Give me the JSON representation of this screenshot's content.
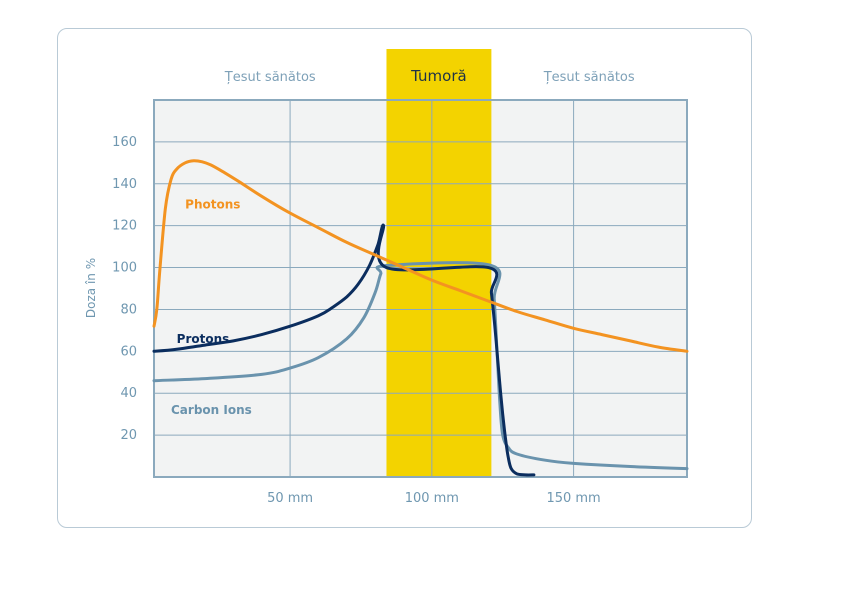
{
  "chart_data": {
    "type": "line",
    "ylabel": "Doza în %",
    "xlim": [
      2,
      190
    ],
    "ylim": [
      0,
      180
    ],
    "x_ticks": [
      {
        "value": 50,
        "label": "50 mm"
      },
      {
        "value": 100,
        "label": "100 mm"
      },
      {
        "value": 150,
        "label": "150 mm"
      }
    ],
    "y_ticks": [
      20,
      40,
      60,
      80,
      100,
      120,
      140,
      160
    ],
    "grid": true,
    "regions": [
      {
        "label": "Țesut sănătos",
        "from": 2,
        "to": 84,
        "highlight": false
      },
      {
        "label": "Tumoră",
        "from": 84,
        "to": 121,
        "highlight": true
      },
      {
        "label": "Țesut sănătos",
        "from": 121,
        "to": 190,
        "highlight": false
      }
    ],
    "series": [
      {
        "name": "Photons",
        "color": "#f39321",
        "x": [
          2,
          3,
          4,
          6,
          8,
          10,
          13,
          16,
          19,
          22,
          26,
          32,
          40,
          50,
          60,
          70,
          80,
          90,
          100,
          110,
          120,
          130,
          140,
          150,
          160,
          170,
          180,
          190
        ],
        "y": [
          72,
          80,
          98,
          128,
          142,
          147,
          150,
          151,
          150.5,
          149,
          146,
          141,
          134,
          126,
          119,
          112,
          106,
          100,
          94,
          89,
          84,
          79,
          75,
          71,
          68,
          65,
          62,
          60
        ]
      },
      {
        "name": "Protons",
        "color": "#0b2d5e",
        "x": [
          2,
          10,
          20,
          30,
          40,
          50,
          60,
          65,
          70,
          74,
          78,
          81,
          83,
          84,
          120,
          121,
          122,
          123,
          124,
          125,
          126,
          127,
          128,
          130,
          133,
          136
        ],
        "y": [
          60,
          61,
          63,
          65,
          68,
          72,
          77,
          81,
          86,
          92,
          101,
          111,
          120,
          100,
          100,
          88,
          75,
          60,
          44,
          30,
          18,
          9,
          4,
          1.5,
          1,
          1
        ]
      },
      {
        "name": "Carbon Ions",
        "color": "#6a93ad",
        "x": [
          2,
          20,
          40,
          50,
          60,
          70,
          76,
          80,
          82,
          84,
          121,
          122,
          123,
          124,
          125,
          127,
          130,
          140,
          150,
          170,
          190
        ],
        "y": [
          46,
          47,
          49,
          52,
          57,
          66,
          76,
          88,
          97,
          101,
          101,
          85,
          60,
          35,
          20,
          14,
          11,
          8,
          6.5,
          5,
          4
        ]
      }
    ],
    "series_labels": [
      {
        "series": "Photons",
        "x": 13,
        "y": 130
      },
      {
        "series": "Protons",
        "x": 10,
        "y": 66
      },
      {
        "series": "Carbon Ions",
        "x": 8,
        "y": 32
      }
    ]
  }
}
